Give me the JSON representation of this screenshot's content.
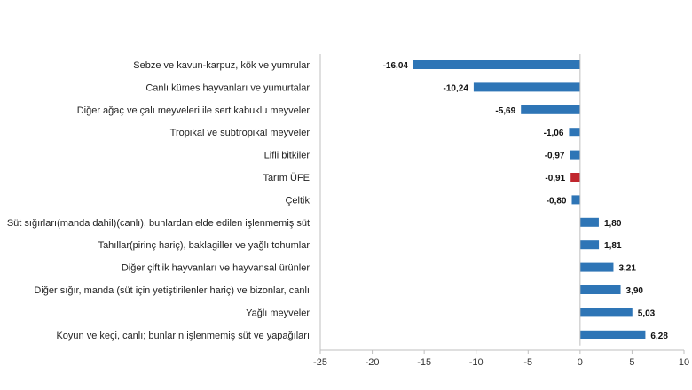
{
  "chart_data": {
    "type": "bar",
    "orientation": "horizontal",
    "categories": [
      "Sebze ve kavun-karpuz, kök ve yumrular",
      "Canlı kümes hayvanları ve yumurtalar",
      "Diğer ağaç ve çalı meyveleri ile sert kabuklu meyveler",
      "Tropikal ve subtropikal meyveler",
      "Lifli bitkiler",
      "Tarım ÜFE",
      "Çeltik",
      "Süt sığırları(manda dahil)(canlı), bunlardan elde edilen işlenmemiş süt",
      "Tahıllar(pirinç hariç), baklagiller ve yağlı tohumlar",
      "Diğer çiftlik hayvanları ve hayvansal ürünler",
      "Diğer sığır, manda (süt için yetiştirilenler hariç) ve bizonlar, canlı",
      "Yağlı meyveler",
      "Koyun ve keçi, canlı; bunların işlenmemiş süt ve yapağıları"
    ],
    "values": [
      -16.04,
      -10.24,
      -5.69,
      -1.06,
      -0.97,
      -0.91,
      -0.8,
      1.8,
      1.81,
      3.21,
      3.9,
      5.03,
      6.28
    ],
    "value_labels": [
      "-16,04",
      "-10,24",
      "-5,69",
      "-1,06",
      "-0,97",
      "-0,91",
      "-0,80",
      "1,80",
      "1,81",
      "3,21",
      "3,90",
      "5,03",
      "6,28"
    ],
    "xlim": [
      -25,
      10
    ],
    "xticks": [
      -25,
      -20,
      -15,
      -10,
      -5,
      0,
      5,
      10
    ],
    "xtick_labels": [
      "-25",
      "-20",
      "-15",
      "-10",
      "-5",
      "0",
      "5",
      "10"
    ],
    "highlight_category": "Tarım ÜFE",
    "colors": {
      "bar": "#2e75b6",
      "highlight": "#c0262d",
      "axis": "#bfbfbf"
    },
    "grid": false,
    "legend": "none"
  }
}
